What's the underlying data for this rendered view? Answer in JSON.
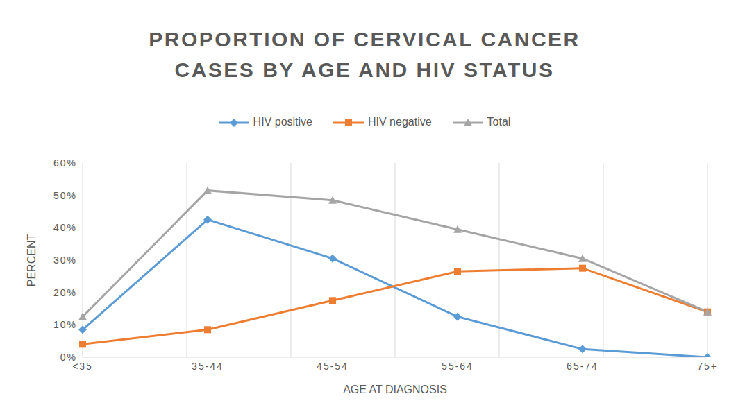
{
  "chart_data": {
    "type": "line",
    "title": "PROPORTION OF CERVICAL CANCER CASES BY AGE AND HIV STATUS",
    "x_label": "AGE AT DIAGNOSIS",
    "y_label": "PERCENT",
    "categories": [
      "<35",
      "35-44",
      "45-54",
      "55-64",
      "65-74",
      "75+"
    ],
    "series": [
      {
        "name": "HIV positive",
        "color": "#5b9bd5",
        "marker": "diamond",
        "values": [
          8.5,
          42.5,
          30.5,
          12.5,
          2.5,
          0
        ]
      },
      {
        "name": "HIV negative",
        "color": "#ed7d31",
        "marker": "square",
        "values": [
          4,
          8.5,
          17.5,
          26.5,
          27.5,
          14
        ]
      },
      {
        "name": "Total",
        "color": "#a5a5a5",
        "marker": "triangle",
        "values": [
          12.5,
          51.5,
          48.5,
          39.5,
          30.5,
          14
        ]
      }
    ],
    "ylim": [
      0,
      60
    ],
    "yticks": [
      {
        "value": 0,
        "label": "0%"
      },
      {
        "value": 10,
        "label": "10%"
      },
      {
        "value": 20,
        "label": "20%"
      },
      {
        "value": 30,
        "label": "30%"
      },
      {
        "value": 40,
        "label": "40%"
      },
      {
        "value": 50,
        "label": "50%"
      },
      {
        "value": 60,
        "label": "60%"
      }
    ],
    "grid": true,
    "legend": "top"
  }
}
